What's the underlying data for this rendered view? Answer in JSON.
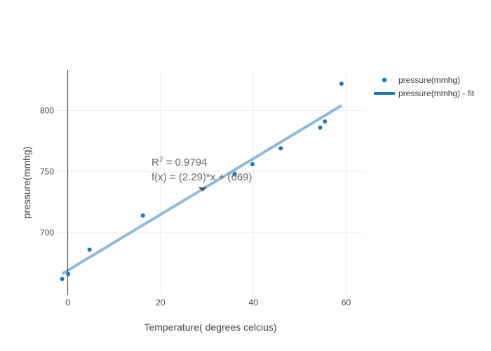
{
  "chart_data": {
    "type": "scatter",
    "xlabel": "Temperature( degrees celcius)",
    "ylabel": "pressure(mmhg)",
    "xlim": [
      -2.5,
      64
    ],
    "ylim": [
      649,
      833
    ],
    "x_ticks": [
      0,
      20,
      40,
      60
    ],
    "y_ticks": [
      700,
      750,
      800
    ],
    "grid": true,
    "legend_position": "top-right",
    "series": [
      {
        "name": "pressure(mmhg)",
        "mode": "markers",
        "color": "#1f77b4",
        "x": [
          -1.2,
          0.1,
          4.7,
          16.2,
          36.0,
          39.8,
          45.9,
          54.4,
          55.4,
          59.0
        ],
        "y": [
          662,
          666,
          686,
          714,
          748,
          756,
          769,
          786,
          791,
          822
        ]
      },
      {
        "name": "pressure(mmhg) - fit",
        "mode": "line",
        "color": "#1f77b4",
        "fit_slope": 2.29,
        "fit_intercept": 669,
        "x": [
          -1.2,
          59.0
        ],
        "y": [
          666.25,
          804.1
        ]
      }
    ],
    "annotation": {
      "r2_base": "R",
      "r2_sup": "2",
      "r2_value": " = 0.9794",
      "equation": "f(x) = (2.29)*x + (669)",
      "arrow_target": {
        "x": 29.0,
        "y": 735.4
      }
    }
  }
}
